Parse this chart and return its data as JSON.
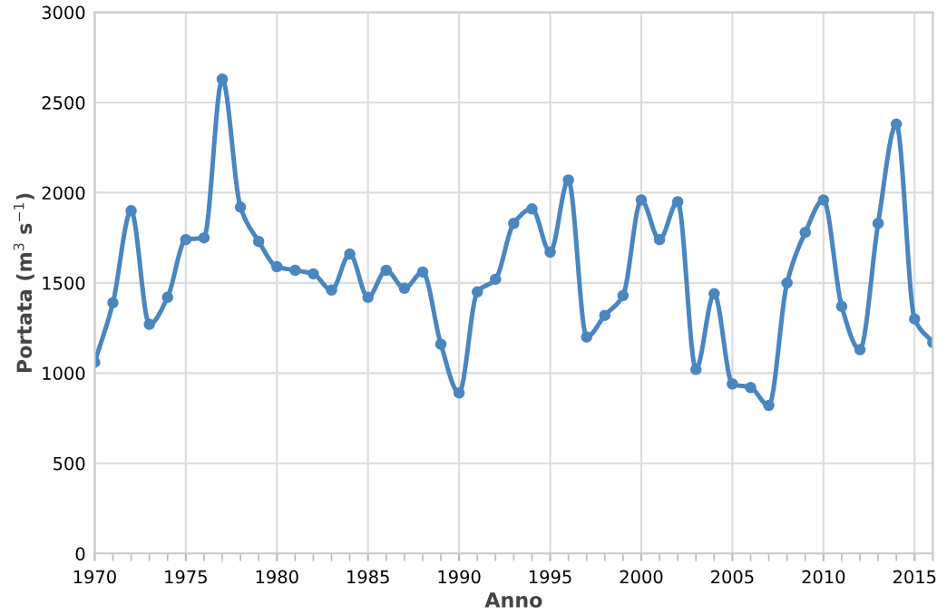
{
  "chart_data": {
    "type": "line",
    "xlabel": "Anno",
    "ylabel": "Portata (m$^{3}$ s$^{−1}$)",
    "x": [
      1970,
      1971,
      1972,
      1973,
      1974,
      1975,
      1976,
      1977,
      1978,
      1979,
      1980,
      1981,
      1982,
      1983,
      1984,
      1985,
      1986,
      1987,
      1988,
      1989,
      1990,
      1991,
      1992,
      1993,
      1994,
      1995,
      1996,
      1997,
      1998,
      1999,
      2000,
      2001,
      2002,
      2003,
      2004,
      2005,
      2006,
      2007,
      2008,
      2009,
      2010,
      2011,
      2012,
      2013,
      2014,
      2015,
      2016
    ],
    "series": [
      {
        "color": "#4a86c0",
        "values": [
          1060,
          1390,
          1900,
          1270,
          1420,
          1740,
          1750,
          2630,
          1920,
          1730,
          1590,
          1570,
          1550,
          1460,
          1660,
          1420,
          1570,
          1470,
          1560,
          1160,
          890,
          1450,
          1520,
          1830,
          1910,
          1670,
          2070,
          1200,
          1320,
          1430,
          1960,
          1740,
          1950,
          1020,
          1440,
          940,
          920,
          820,
          1500,
          1780,
          1960,
          1370,
          1130,
          1830,
          2380,
          1300,
          1170
        ]
      }
    ],
    "xlim": [
      1970,
      2016
    ],
    "xticks": [
      1970,
      1975,
      1980,
      1985,
      1990,
      1995,
      2000,
      2005,
      2010,
      2015
    ],
    "ylim": [
      0,
      3000
    ],
    "yticks": [
      0,
      500,
      1000,
      1500,
      2000,
      2500,
      3000
    ],
    "grid": true,
    "marker": "circle",
    "line_style": "solid"
  }
}
